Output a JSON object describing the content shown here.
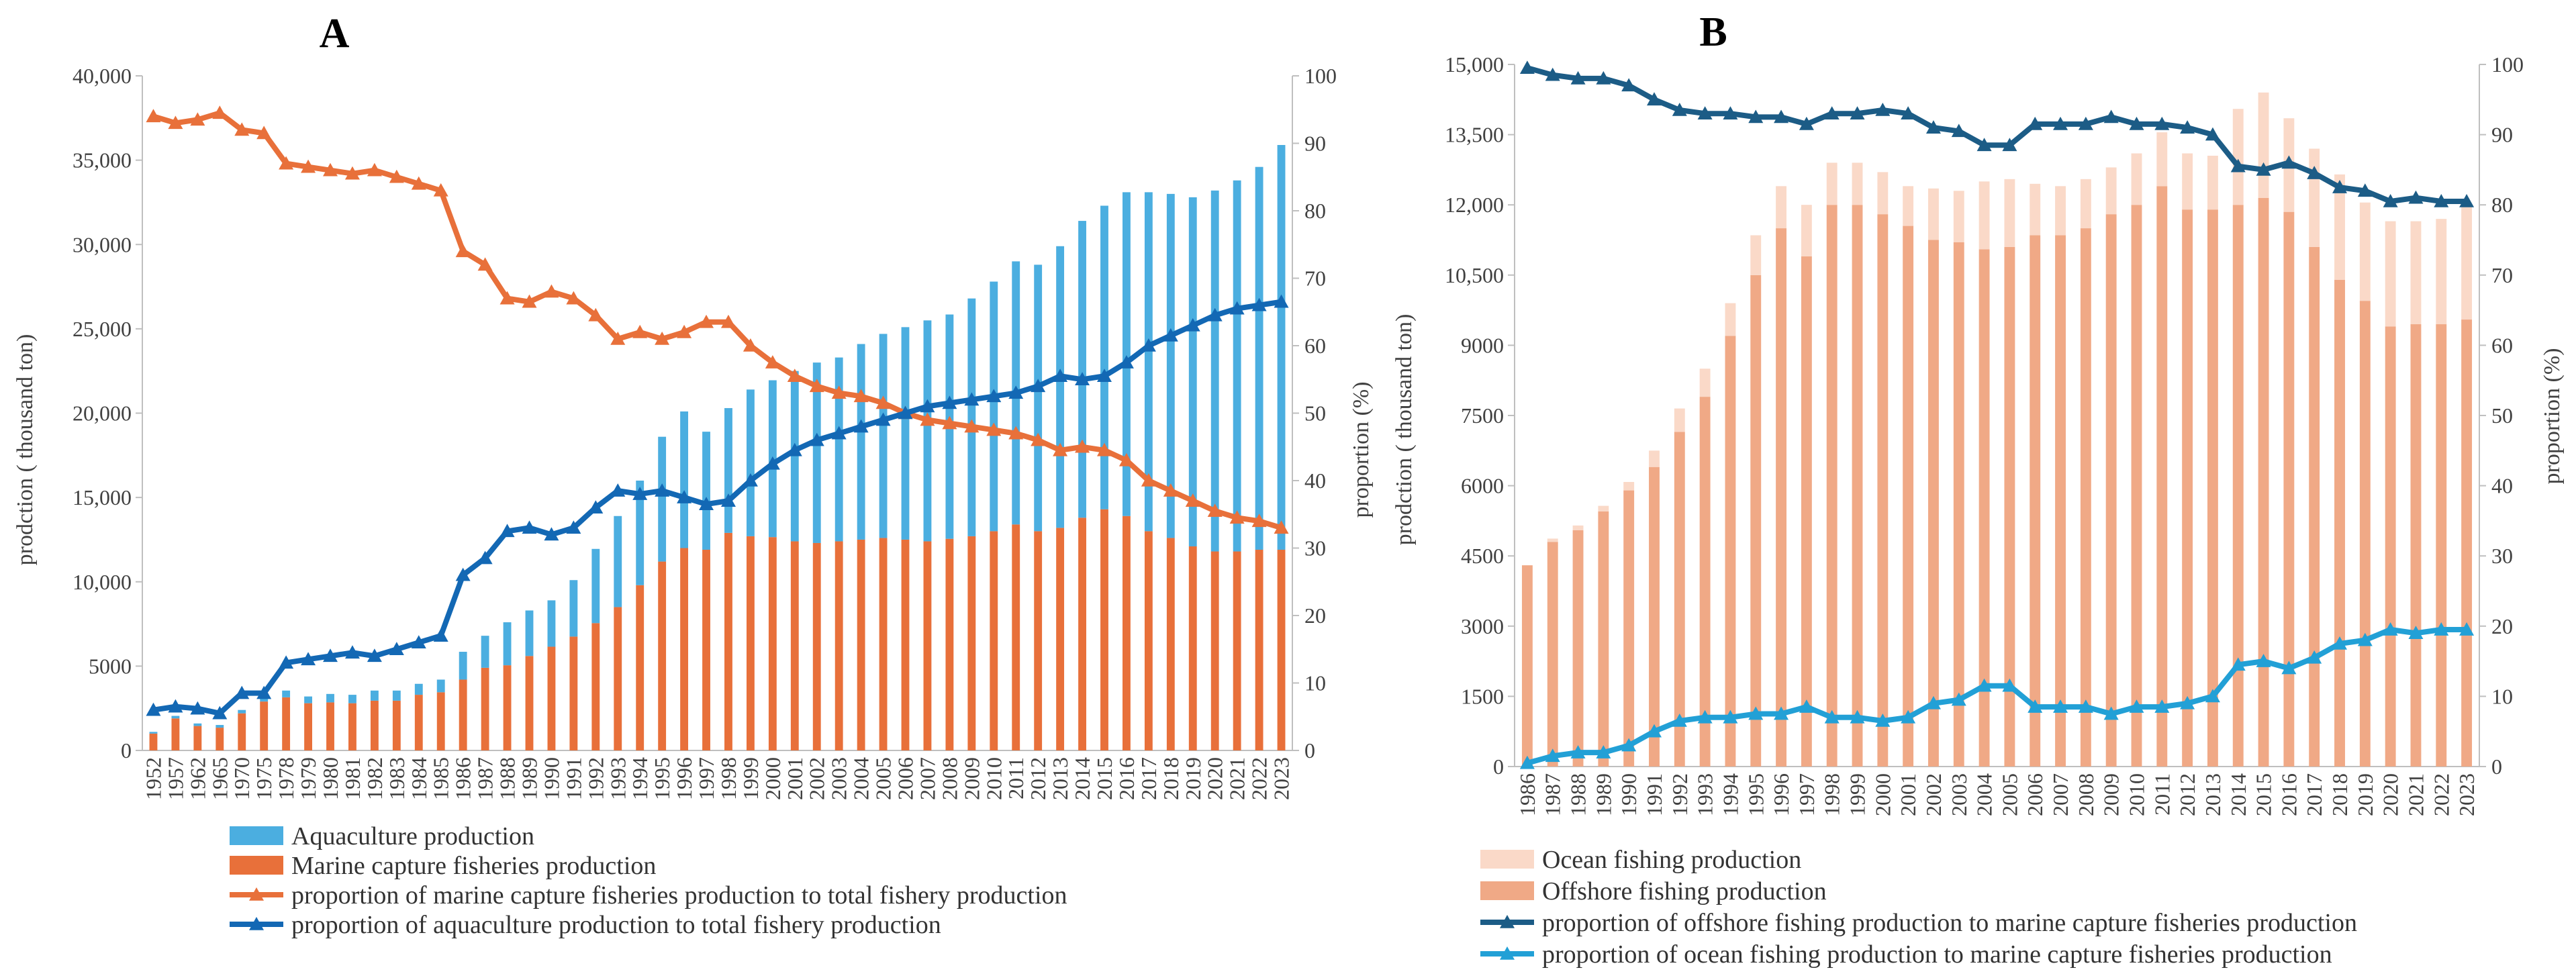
{
  "chart_data": [
    {
      "type": "bar",
      "panel_label": "A",
      "stacked": true,
      "categories": [
        "1952",
        "1957",
        "1962",
        "1965",
        "1970",
        "1975",
        "1978",
        "1979",
        "1980",
        "1981",
        "1982",
        "1983",
        "1984",
        "1985",
        "1986",
        "1987",
        "1988",
        "1989",
        "1990",
        "1991",
        "1992",
        "1993",
        "1994",
        "1995",
        "1996",
        "1997",
        "1998",
        "1999",
        "2000",
        "2001",
        "2002",
        "2003",
        "2004",
        "2005",
        "2006",
        "2007",
        "2008",
        "2009",
        "2010",
        "2011",
        "2012",
        "2013",
        "2014",
        "2015",
        "2016",
        "2017",
        "2018",
        "2019",
        "2020",
        "2021",
        "2022",
        "2023"
      ],
      "xlabel": "",
      "ylabel": "prodction ( thousand ton)",
      "y2label": "proportion (%)",
      "ylim": [
        0,
        40000
      ],
      "y2lim": [
        0,
        100
      ],
      "y_ticks": [
        "0",
        "5000",
        "10,000",
        "15,000",
        "20,000",
        "25,000",
        "30,000",
        "35,000",
        "40,000"
      ],
      "y2_ticks": [
        "0",
        "10",
        "20",
        "30",
        "40",
        "50",
        "60",
        "70",
        "80",
        "90",
        "100"
      ],
      "series": [
        {
          "name": "Marine capture fisheries production",
          "kind": "bar",
          "axis": "left",
          "color": "#E8703A",
          "values": [
            1000,
            1900,
            1450,
            1350,
            2200,
            2900,
            3150,
            2800,
            2850,
            2800,
            2950,
            2950,
            3300,
            3450,
            4200,
            4900,
            5050,
            5600,
            6150,
            6750,
            7550,
            8500,
            9800,
            11200,
            12000,
            11900,
            12900,
            12700,
            12650,
            12400,
            12300,
            12400,
            12500,
            12600,
            12500,
            12400,
            12550,
            12700,
            13000,
            13400,
            13000,
            13200,
            13800,
            14300,
            13900,
            13000,
            12600,
            12100,
            11800,
            11800,
            11900,
            11900
          ]
        },
        {
          "name": "Aquaculture production",
          "kind": "bar",
          "axis": "left",
          "color": "#4BAEE0",
          "values": [
            100,
            150,
            150,
            160,
            200,
            300,
            400,
            400,
            500,
            500,
            600,
            600,
            650,
            750,
            1650,
            1900,
            2550,
            2700,
            2750,
            3350,
            4400,
            5400,
            6200,
            7400,
            8100,
            7000,
            7400,
            8700,
            9300,
            10100,
            10700,
            10900,
            11600,
            12100,
            12600,
            13100,
            13300,
            14100,
            14800,
            15600,
            15800,
            16700,
            17600,
            18000,
            19200,
            20100,
            20400,
            20700,
            21400,
            22000,
            22700,
            24000
          ]
        },
        {
          "name": "proportion of marine capture fisheries production to total fishery production",
          "kind": "line",
          "axis": "right",
          "color": "#E8703A",
          "values": [
            94,
            93,
            93.5,
            94.5,
            92,
            91.5,
            87,
            86.5,
            86,
            85.5,
            86,
            85,
            84,
            83,
            74,
            72,
            67,
            66.5,
            68,
            67,
            64.5,
            61,
            62,
            61,
            62,
            63.5,
            63.5,
            60,
            57.5,
            55.5,
            54,
            53,
            52.5,
            51.5,
            50,
            49,
            48.5,
            48,
            47.5,
            47,
            46,
            44.5,
            45,
            44.5,
            43,
            40,
            38.5,
            37,
            35.5,
            34.5,
            34,
            33
          ]
        },
        {
          "name": "proportion of aquaculture production to total fishery production",
          "kind": "line",
          "axis": "right",
          "color": "#1368B4",
          "values": [
            6,
            6.5,
            6.2,
            5.5,
            8.5,
            8.5,
            13,
            13.5,
            14,
            14.5,
            14,
            15,
            16,
            17,
            26,
            28.5,
            32.5,
            33,
            32,
            33,
            36,
            38.5,
            38,
            38.5,
            37.5,
            36.5,
            37,
            40,
            42.5,
            44.5,
            46,
            47,
            48,
            49,
            50,
            51,
            51.5,
            52,
            52.5,
            53,
            54,
            55.5,
            55,
            55.5,
            57.5,
            60,
            61.5,
            63,
            64.5,
            65.5,
            66,
            66.5
          ]
        }
      ]
    },
    {
      "type": "bar",
      "panel_label": "B",
      "stacked": true,
      "categories": [
        "1986",
        "1987",
        "1988",
        "1989",
        "1990",
        "1991",
        "1992",
        "1993",
        "1994",
        "1995",
        "1996",
        "1997",
        "1998",
        "1999",
        "2000",
        "2001",
        "2002",
        "2003",
        "2004",
        "2005",
        "2006",
        "2007",
        "2008",
        "2009",
        "2010",
        "2011",
        "2012",
        "2013",
        "2014",
        "2015",
        "2016",
        "2017",
        "2018",
        "2019",
        "2020",
        "2021",
        "2022",
        "2023"
      ],
      "xlabel": "",
      "ylabel": "prodction ( thousand ton)",
      "y2label": "proportion (%)",
      "ylim": [
        0,
        15000
      ],
      "y2lim": [
        0,
        100
      ],
      "y_ticks": [
        "0",
        "1500",
        "3000",
        "4500",
        "6000",
        "7500",
        "9000",
        "10,500",
        "12,000",
        "13,500",
        "15,000"
      ],
      "y2_ticks": [
        "0",
        "10",
        "20",
        "30",
        "40",
        "50",
        "60",
        "70",
        "80",
        "90",
        "100"
      ],
      "series": [
        {
          "name": "Offshore fishing production",
          "kind": "bar",
          "axis": "left",
          "color": "#F0A986",
          "values": [
            4300,
            4800,
            5050,
            5450,
            5900,
            6400,
            7150,
            7900,
            9200,
            10500,
            11500,
            10900,
            12000,
            12000,
            11800,
            11550,
            11250,
            11200,
            11050,
            11100,
            11350,
            11350,
            11500,
            11800,
            12000,
            12400,
            11900,
            11900,
            12000,
            12150,
            11850,
            11100,
            10400,
            9950,
            9400,
            9450,
            9450,
            9550
          ]
        },
        {
          "name": "Ocean  fishing production",
          "kind": "bar",
          "axis": "left",
          "color": "#FAD9C8",
          "values": [
            0,
            70,
            100,
            120,
            180,
            350,
            500,
            600,
            700,
            850,
            900,
            1100,
            900,
            900,
            900,
            850,
            1100,
            1100,
            1450,
            1450,
            1100,
            1050,
            1050,
            1000,
            1100,
            1150,
            1200,
            1150,
            2050,
            2250,
            2000,
            2100,
            2250,
            2100,
            2250,
            2200,
            2250,
            2450
          ]
        },
        {
          "name": "proportion of offshore fishing production to marine capture fisheries production",
          "kind": "line",
          "axis": "right",
          "color": "#1C5C86",
          "values": [
            99.5,
            98.5,
            98,
            98,
            97,
            95,
            93.5,
            93,
            93,
            92.5,
            92.5,
            91.5,
            93,
            93,
            93.5,
            93,
            91,
            90.5,
            88.5,
            88.5,
            91.5,
            91.5,
            91.5,
            92.5,
            91.5,
            91.5,
            91,
            90,
            85.5,
            85,
            86,
            84.5,
            82.5,
            82,
            80.5,
            81,
            80.5,
            80.5
          ]
        },
        {
          "name": "proportion of ocean fishing production to marine capture fisheries production",
          "kind": "line",
          "axis": "right",
          "color": "#22A0D6",
          "values": [
            0.5,
            1.5,
            2,
            2,
            3,
            5,
            6.5,
            7,
            7,
            7.5,
            7.5,
            8.5,
            7,
            7,
            6.5,
            7,
            9,
            9.5,
            11.5,
            11.5,
            8.5,
            8.5,
            8.5,
            7.5,
            8.5,
            8.5,
            9,
            10,
            14.5,
            15,
            14,
            15.5,
            17.5,
            18,
            19.5,
            19,
            19.5,
            19.5
          ]
        }
      ]
    }
  ]
}
